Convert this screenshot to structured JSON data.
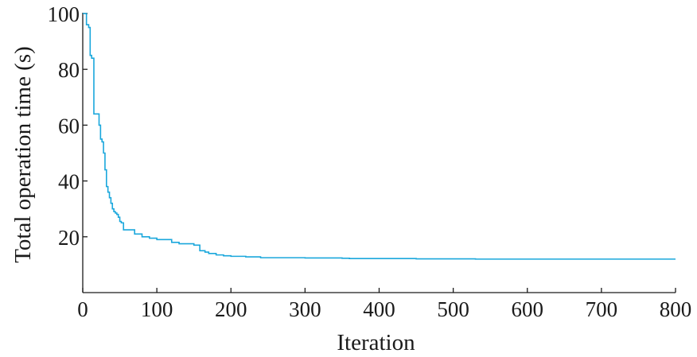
{
  "chart_data": {
    "type": "line",
    "title": "",
    "xlabel": "Iteration",
    "ylabel": "Total operation time (s)",
    "xlim": [
      0,
      800
    ],
    "ylim": [
      0,
      100
    ],
    "xticks": [
      0,
      100,
      200,
      300,
      400,
      500,
      600,
      700,
      800
    ],
    "yticks": [
      20,
      40,
      60,
      80,
      100
    ],
    "grid": false,
    "legend": "none",
    "series": [
      {
        "color": "#1aa7dc",
        "step": true,
        "x": [
          0,
          3,
          5,
          8,
          10,
          12,
          15,
          20,
          22,
          24,
          26,
          28,
          30,
          32,
          34,
          36,
          38,
          40,
          42,
          44,
          46,
          48,
          50,
          52,
          55,
          60,
          70,
          80,
          90,
          100,
          120,
          130,
          150,
          158,
          165,
          170,
          180,
          190,
          200,
          220,
          240,
          300,
          350,
          360,
          400,
          450,
          500,
          530,
          600,
          700,
          800
        ],
        "y": [
          100,
          100,
          96,
          95,
          85,
          84,
          64,
          64,
          60,
          55,
          54,
          50,
          44,
          38,
          36,
          34,
          32,
          30,
          29,
          28.5,
          28,
          27,
          25.5,
          25,
          22.5,
          22.5,
          21,
          20,
          19.5,
          19,
          18,
          17.5,
          17,
          15,
          14.5,
          14,
          13.5,
          13.2,
          13,
          12.8,
          12.5,
          12.4,
          12.3,
          12.2,
          12.2,
          12.1,
          12.1,
          12,
          12,
          12,
          12
        ]
      }
    ]
  }
}
